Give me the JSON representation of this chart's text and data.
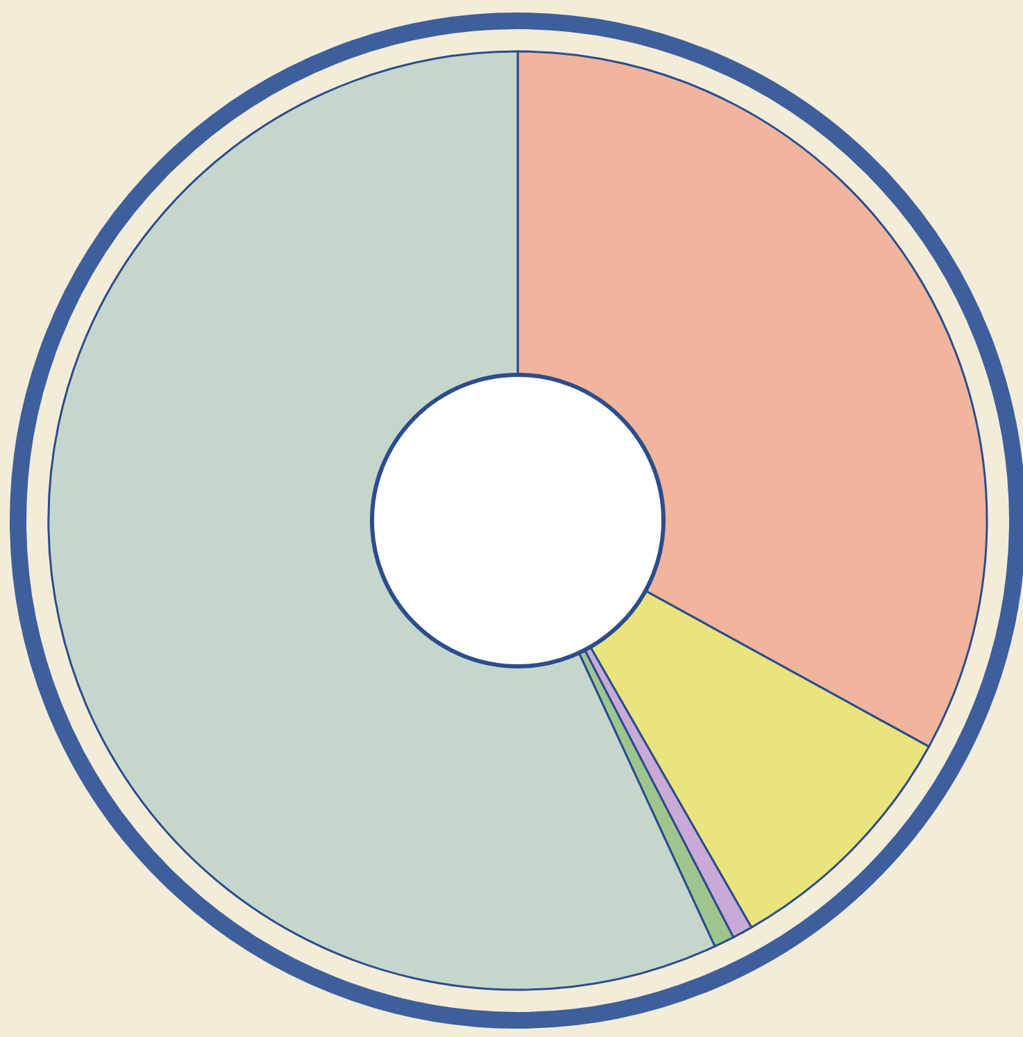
{
  "chart_data": {
    "type": "donut",
    "categories": [
      null,
      null,
      null,
      null,
      null
    ],
    "values": [
      33.0,
      8.7,
      0.7,
      0.7,
      56.9
    ],
    "colors": [
      "#f0b59c",
      "#e9e47c",
      "#c8aad6",
      "#9fc58e",
      "#c5d7cd"
    ]
  }
}
